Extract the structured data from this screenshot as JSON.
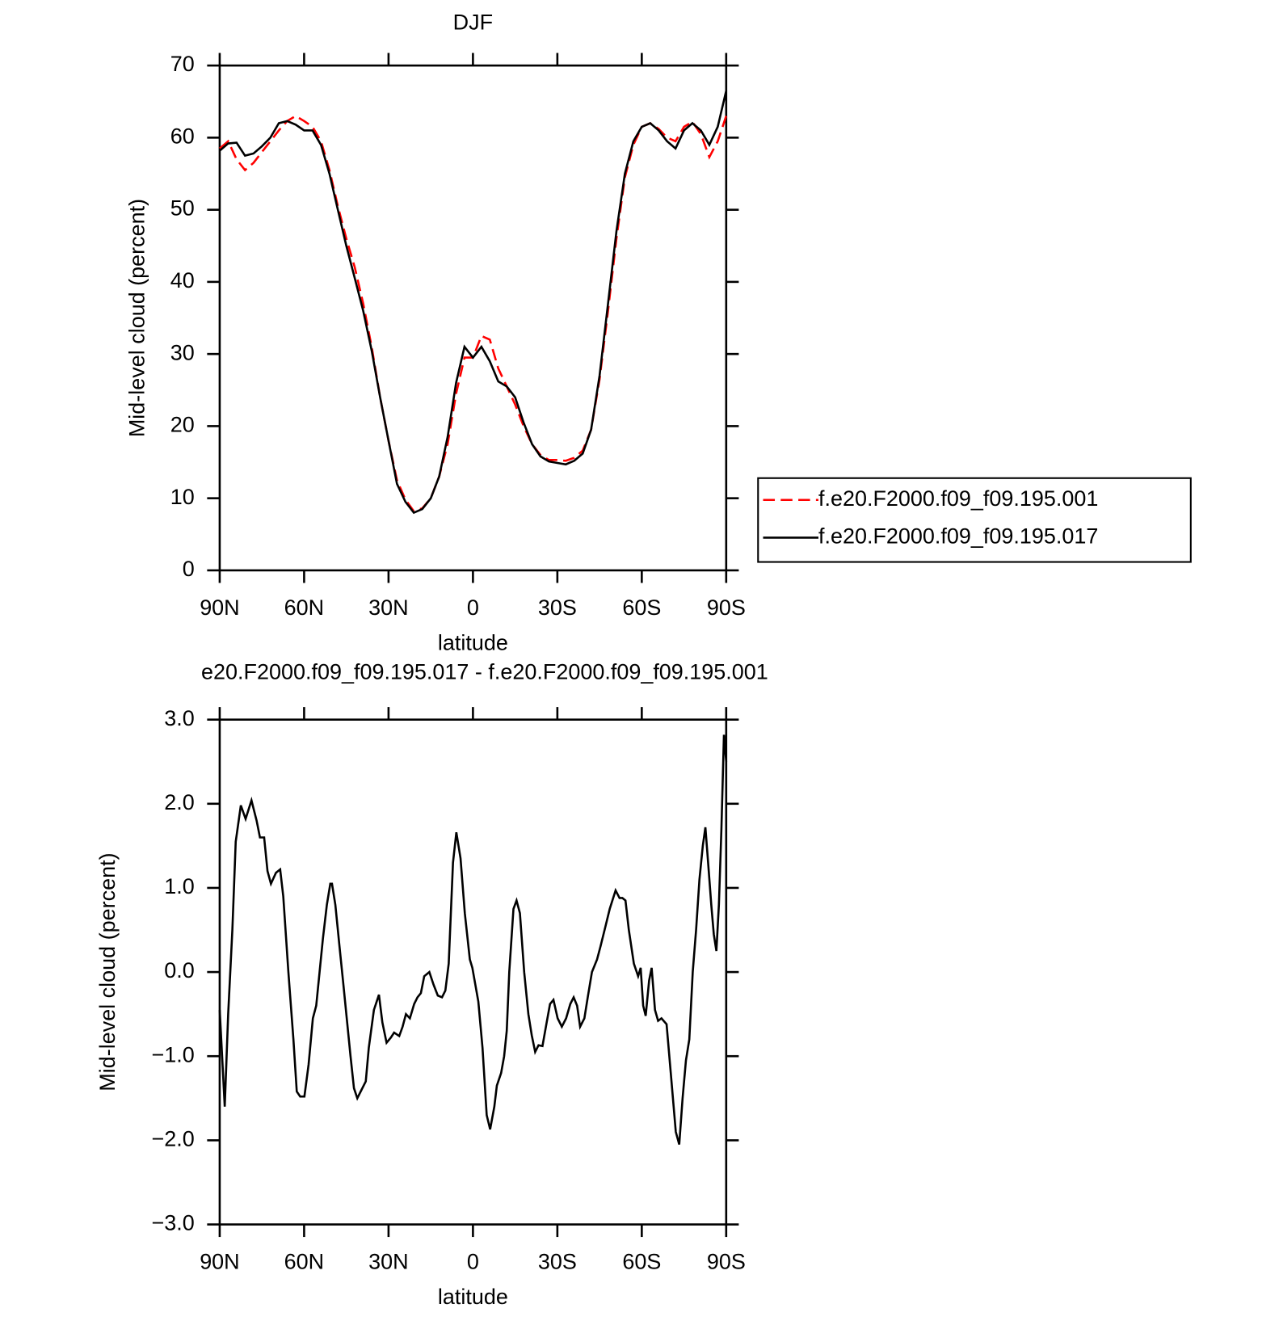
{
  "chart_data": [
    {
      "type": "line",
      "title": "DJF",
      "x_label": "latitude",
      "y_label": "Mid-level cloud (percent)",
      "xlim": [
        90,
        -90
      ],
      "xticks": [
        {
          "value": 90,
          "label": "90N"
        },
        {
          "value": 60,
          "label": "60N"
        },
        {
          "value": 30,
          "label": "30N"
        },
        0,
        {
          "value": -30,
          "label": "30S"
        },
        {
          "value": -60,
          "label": "60S"
        },
        {
          "value": -90,
          "label": "90S"
        }
      ],
      "ylim": [
        0,
        70
      ],
      "yticks": [
        0,
        10,
        20,
        30,
        40,
        50,
        60,
        70
      ],
      "legend": "outside right",
      "x": [
        90,
        87,
        84,
        81,
        78,
        75,
        72,
        69,
        66,
        63,
        60,
        57,
        54,
        51,
        48,
        45,
        42,
        39,
        36,
        33,
        30,
        27,
        24,
        21,
        18,
        15,
        12,
        9,
        6,
        3,
        0,
        -3,
        -6,
        -9,
        -12,
        -15,
        -18,
        -21,
        -24,
        -27,
        -30,
        -33,
        -36,
        -39,
        -42,
        -45,
        -48,
        -51,
        -54,
        -57,
        -60,
        -63,
        -66,
        -69,
        -72,
        -75,
        -78,
        -81,
        -84,
        -87,
        -90
      ],
      "series": [
        {
          "name": "f.e20.F2000.f09_f09.195.001",
          "color": "#ff0000",
          "style": "dashed",
          "values": [
            58.5,
            59.5,
            57,
            55.5,
            56.5,
            58,
            59.5,
            61,
            62.3,
            63,
            62.3,
            61.5,
            59.5,
            55.5,
            50.5,
            46,
            42,
            37,
            31,
            24,
            18,
            12.5,
            9.8,
            8.2,
            8.6,
            10,
            13,
            17.5,
            24.5,
            29.5,
            29.5,
            32.5,
            32,
            28,
            25.5,
            23,
            20,
            17.5,
            16,
            15.3,
            15.3,
            15.2,
            15.6,
            16.6,
            19.5,
            26.5,
            36,
            46,
            54.5,
            59,
            61.5,
            62,
            61.2,
            60,
            59.5,
            61.5,
            62.2,
            60.5,
            57.3,
            59.5,
            63
          ]
        },
        {
          "name": "f.e20.F2000.f09_f09.195.017",
          "color": "#000000",
          "style": "solid",
          "values": [
            58.2,
            59.2,
            59.3,
            57.5,
            57.8,
            58.8,
            60,
            62,
            62.3,
            61.8,
            61,
            61,
            59,
            55,
            50,
            45,
            40.5,
            36,
            30.5,
            24,
            18,
            12,
            9.5,
            8,
            8.5,
            10,
            13,
            18.5,
            26,
            31,
            29.5,
            31,
            29,
            26.2,
            25.5,
            24,
            20.5,
            17.5,
            15.8,
            15.1,
            14.9,
            14.7,
            15.2,
            16.2,
            19.5,
            27,
            37,
            47,
            55,
            59.5,
            61.5,
            62,
            61,
            59.5,
            58.5,
            61,
            62,
            61,
            59,
            61.5,
            66.5
          ]
        }
      ]
    },
    {
      "type": "line",
      "title": "e20.F2000.f09_f09.195.017 - f.e20.F2000.f09_f09.195.001",
      "x_label": "latitude",
      "y_label": "Mid-level cloud (percent)",
      "xlim": [
        90,
        -90
      ],
      "xticks": [
        {
          "value": 90,
          "label": "90N"
        },
        {
          "value": 60,
          "label": "60N"
        },
        {
          "value": 30,
          "label": "30N"
        },
        0,
        {
          "value": -30,
          "label": "30S"
        },
        {
          "value": -60,
          "label": "60S"
        },
        {
          "value": -90,
          "label": "90S"
        }
      ],
      "ylim": [
        -3,
        3
      ],
      "yticks": [
        {
          "value": -3,
          "label": "−3.0"
        },
        {
          "value": -2,
          "label": "−2.0"
        },
        {
          "value": -1,
          "label": "−1.0"
        },
        {
          "value": 0,
          "label": "0.0"
        },
        {
          "value": 1,
          "label": "1.0"
        },
        {
          "value": 2,
          "label": "2.0"
        },
        {
          "value": 3,
          "label": "3.0"
        }
      ],
      "color": "#000000",
      "x": [
        90,
        88.2,
        87,
        85.5,
        84.3,
        82.5,
        80.8,
        78.7,
        76.9,
        75.7,
        74.2,
        73,
        71.8,
        70,
        68.5,
        67.4,
        65.6,
        63.8,
        62.6,
        61.4,
        59.9,
        58.4,
        56.9,
        55.7,
        54.5,
        53.3,
        51.9,
        50.7,
        50.1,
        48.9,
        47.4,
        46.2,
        44.7,
        43.5,
        42.3,
        41.1,
        39.9,
        38.1,
        37,
        35.2,
        33.4,
        32.2,
        30.7,
        29.2,
        28,
        26.2,
        25,
        23.8,
        22.4,
        20.9,
        19.7,
        18.5,
        17.3,
        15.5,
        14,
        12.5,
        11,
        9.8,
        8.6,
        7.1,
        5.9,
        4.4,
        2.9,
        1.1,
        0.2,
        -1.9,
        -3.4,
        -4.9,
        -6.1,
        -7.6,
        -8.5,
        -10,
        -11.1,
        -12,
        -12.9,
        -14.4,
        -15.5,
        -16.7,
        -18.2,
        -19.7,
        -20.9,
        -22.1,
        -23.3,
        -24.7,
        -26.2,
        -27.4,
        -28.6,
        -30.1,
        -31.6,
        -33.1,
        -34.6,
        -35.8,
        -37,
        -38.1,
        -39.6,
        -40.8,
        -42.3,
        -44.1,
        -45.3,
        -46.8,
        -48.6,
        -50.7,
        -52.1,
        -53.1,
        -54.2,
        -55.4,
        -57.2,
        -58.7,
        -59.6,
        -60.5,
        -61.4,
        -62.6,
        -63.5,
        -64.7,
        -65.8,
        -67,
        -68.8,
        -70.3,
        -72.1,
        -73.3,
        -74.5,
        -75.7,
        -76.9,
        -78.1,
        -79.3,
        -80.5,
        -81.7,
        -82.6,
        -83.8,
        -84.7,
        -85.6,
        -86.5,
        -87.4,
        -88.3,
        -89.2,
        -90
      ],
      "values": [
        -0.45,
        -1.6,
        -0.5,
        0.5,
        1.55,
        1.98,
        1.82,
        2.04,
        1.8,
        1.6,
        1.6,
        1.2,
        1.05,
        1.18,
        1.22,
        0.9,
        0,
        -0.8,
        -1.42,
        -1.48,
        -1.48,
        -1.1,
        -0.55,
        -0.4,
        0,
        0.4,
        0.8,
        1.05,
        1.05,
        0.8,
        0.3,
        -0.1,
        -0.6,
        -1,
        -1.38,
        -1.5,
        -1.42,
        -1.3,
        -0.9,
        -0.45,
        -0.27,
        -0.6,
        -0.84,
        -0.78,
        -0.72,
        -0.76,
        -0.65,
        -0.5,
        -0.55,
        -0.38,
        -0.3,
        -0.25,
        -0.05,
        0,
        -0.15,
        -0.28,
        -0.3,
        -0.22,
        0.1,
        1.3,
        1.66,
        1.35,
        0.7,
        0.15,
        0.05,
        -0.35,
        -0.9,
        -1.7,
        -1.87,
        -1.6,
        -1.35,
        -1.2,
        -1,
        -0.7,
        0,
        0.75,
        0.85,
        0.7,
        0,
        -0.5,
        -0.75,
        -0.95,
        -0.87,
        -0.88,
        -0.6,
        -0.38,
        -0.33,
        -0.55,
        -0.65,
        -0.55,
        -0.38,
        -0.3,
        -0.4,
        -0.65,
        -0.55,
        -0.3,
        0,
        0.15,
        0.3,
        0.5,
        0.75,
        0.97,
        0.88,
        0.88,
        0.85,
        0.5,
        0.1,
        -0.05,
        0.05,
        -0.4,
        -0.52,
        -0.1,
        0.05,
        -0.45,
        -0.58,
        -0.55,
        -0.62,
        -1.2,
        -1.9,
        -2.05,
        -1.5,
        -1.05,
        -0.8,
        0,
        0.5,
        1.1,
        1.5,
        1.72,
        1.2,
        0.8,
        0.45,
        0.25,
        0.8,
        1.7,
        2.82,
        2.5
      ]
    }
  ]
}
